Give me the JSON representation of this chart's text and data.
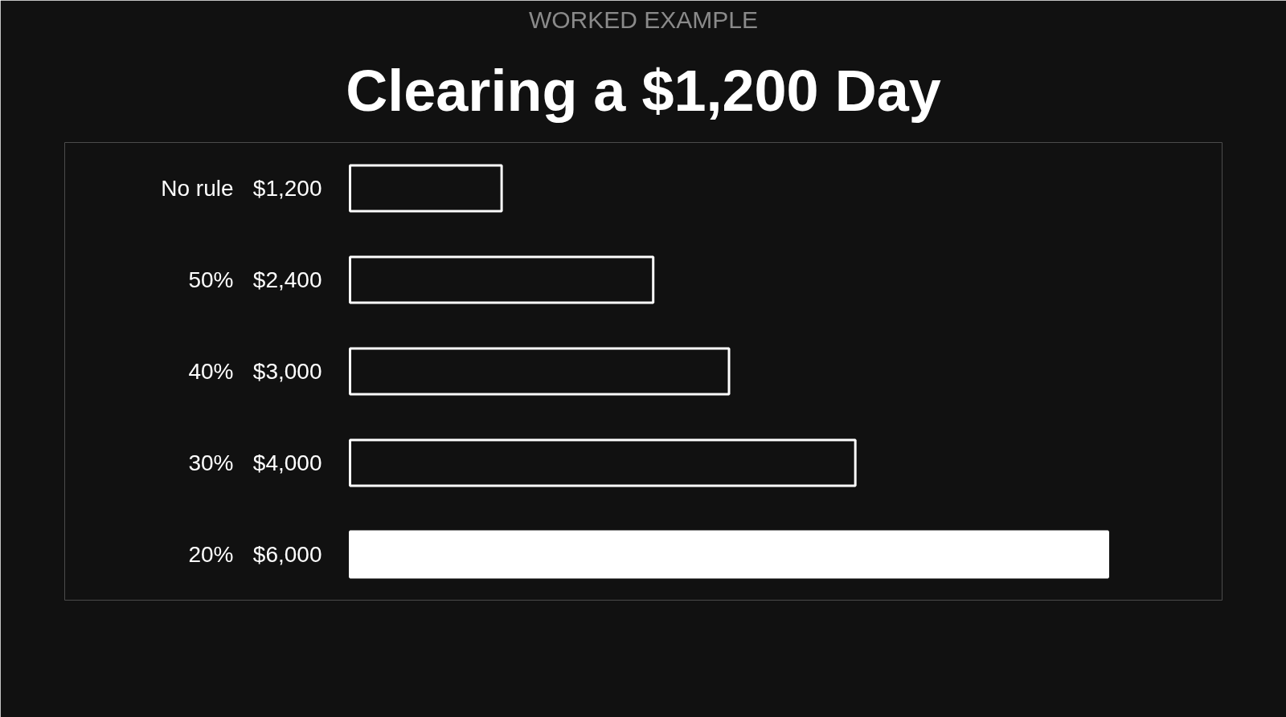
{
  "chart_data": {
    "type": "bar",
    "orientation": "horizontal",
    "subtitle": "WORKED EXAMPLE",
    "title": "Clearing a $1,200 Day",
    "categories": [
      "No rule",
      "50%",
      "40%",
      "30%",
      "20%"
    ],
    "values": [
      1200,
      2400,
      3000,
      4000,
      6000
    ],
    "value_labels": [
      "$1,200",
      "$2,400",
      "$3,000",
      "$4,000",
      "$6,000"
    ],
    "colors": [
      "#111111",
      "#111111",
      "#111111",
      "#111111",
      "#ffffff"
    ],
    "grid": false
  }
}
